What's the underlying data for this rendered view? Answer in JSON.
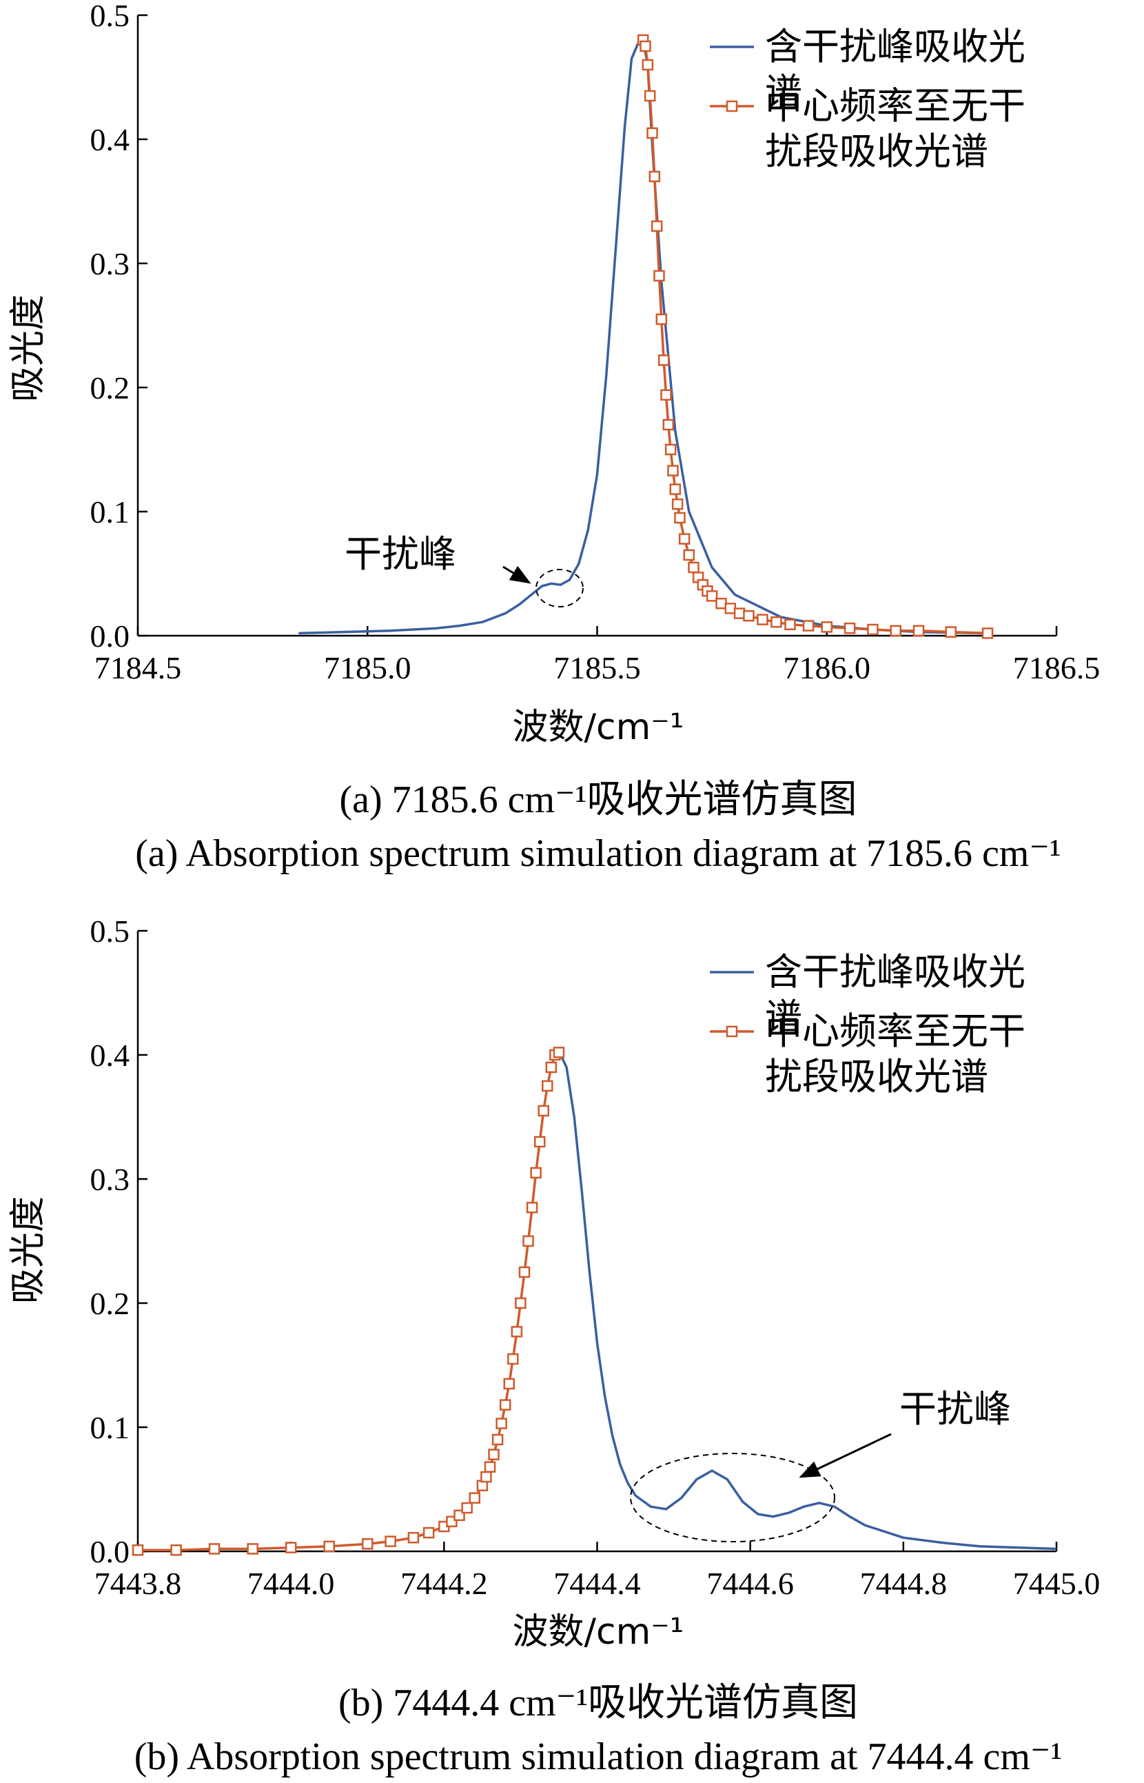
{
  "chart_data": [
    {
      "type": "line",
      "caption_cn": "(a) 7185.6 cm⁻¹吸收光谱仿真图",
      "caption_en": "(a) Absorption spectrum simulation diagram at 7185.6 cm⁻¹",
      "xlabel": "波数/cm⁻¹",
      "ylabel": "吸光度",
      "xlim": [
        7184.5,
        7186.5
      ],
      "ylim": [
        0.0,
        0.5
      ],
      "xticks": [
        "7184.5",
        "7185.0",
        "7185.5",
        "7186.0",
        "7186.5"
      ],
      "yticks": [
        "0.0",
        "0.1",
        "0.2",
        "0.3",
        "0.4",
        "0.5"
      ],
      "legend": {
        "placement": "top-right"
      },
      "annotation": {
        "text": "干扰峰",
        "x": 7185.41,
        "y": 0.042
      },
      "series": [
        {
          "name": "含干扰峰吸收光谱",
          "color": "#3a5fa0",
          "marker": "none",
          "x": [
            7184.85,
            7184.95,
            7185.05,
            7185.15,
            7185.2,
            7185.25,
            7185.3,
            7185.33,
            7185.36,
            7185.38,
            7185.4,
            7185.42,
            7185.44,
            7185.46,
            7185.48,
            7185.5,
            7185.52,
            7185.54,
            7185.56,
            7185.575,
            7185.59,
            7185.6,
            7185.61,
            7185.62,
            7185.64,
            7185.67,
            7185.7,
            7185.75,
            7185.8,
            7185.9,
            7186.0,
            7186.1,
            7186.2,
            7186.35
          ],
          "y": [
            0.002,
            0.003,
            0.004,
            0.006,
            0.008,
            0.011,
            0.018,
            0.025,
            0.034,
            0.04,
            0.042,
            0.041,
            0.045,
            0.058,
            0.085,
            0.13,
            0.21,
            0.31,
            0.41,
            0.465,
            0.478,
            0.48,
            0.46,
            0.395,
            0.285,
            0.165,
            0.1,
            0.055,
            0.033,
            0.015,
            0.008,
            0.005,
            0.003,
            0.002
          ]
        },
        {
          "name": "中心频率至无干扰段吸收光谱",
          "color": "#d05a2b",
          "marker": "square",
          "x": [
            7185.6,
            7185.605,
            7185.61,
            7185.615,
            7185.62,
            7185.625,
            7185.63,
            7185.635,
            7185.64,
            7185.645,
            7185.65,
            7185.655,
            7185.66,
            7185.665,
            7185.67,
            7185.675,
            7185.68,
            7185.69,
            7185.7,
            7185.71,
            7185.72,
            7185.73,
            7185.74,
            7185.75,
            7185.77,
            7185.79,
            7185.81,
            7185.83,
            7185.86,
            7185.89,
            7185.92,
            7185.96,
            7186.0,
            7186.05,
            7186.1,
            7186.15,
            7186.2,
            7186.27,
            7186.35
          ],
          "y": [
            0.48,
            0.475,
            0.46,
            0.435,
            0.405,
            0.37,
            0.33,
            0.29,
            0.255,
            0.222,
            0.194,
            0.17,
            0.15,
            0.133,
            0.118,
            0.106,
            0.095,
            0.078,
            0.065,
            0.055,
            0.047,
            0.041,
            0.036,
            0.032,
            0.026,
            0.022,
            0.018,
            0.016,
            0.013,
            0.011,
            0.009,
            0.008,
            0.007,
            0.006,
            0.005,
            0.004,
            0.004,
            0.003,
            0.002
          ]
        }
      ]
    },
    {
      "type": "line",
      "caption_cn": "(b) 7444.4 cm⁻¹吸收光谱仿真图",
      "caption_en": "(b) Absorption spectrum simulation diagram at 7444.4 cm⁻¹",
      "xlabel": "波数/cm⁻¹",
      "ylabel": "吸光度",
      "xlim": [
        7443.8,
        7445.0
      ],
      "ylim": [
        0.0,
        0.5
      ],
      "xticks": [
        "7443.8",
        "7444.0",
        "7444.2",
        "7444.4",
        "7444.6",
        "7444.8",
        "7445.0"
      ],
      "yticks": [
        "0.0",
        "0.1",
        "0.2",
        "0.3",
        "0.4",
        "0.5"
      ],
      "legend": {
        "placement": "top-right"
      },
      "annotation": {
        "text": "干扰峰",
        "x": 7444.6,
        "y": 0.045
      },
      "series": [
        {
          "name": "含干扰峰吸收光谱",
          "color": "#3a5fa0",
          "marker": "none",
          "x": [
            7444.34,
            7444.35,
            7444.36,
            7444.37,
            7444.38,
            7444.39,
            7444.4,
            7444.41,
            7444.42,
            7444.43,
            7444.44,
            7444.45,
            7444.47,
            7444.49,
            7444.51,
            7444.53,
            7444.55,
            7444.57,
            7444.59,
            7444.61,
            7444.63,
            7444.65,
            7444.67,
            7444.69,
            7444.71,
            7444.73,
            7444.75,
            7444.8,
            7444.85,
            7444.9,
            7445.0
          ],
          "y": [
            0.4,
            0.403,
            0.39,
            0.35,
            0.29,
            0.225,
            0.168,
            0.125,
            0.093,
            0.07,
            0.055,
            0.045,
            0.036,
            0.034,
            0.043,
            0.058,
            0.065,
            0.058,
            0.04,
            0.03,
            0.028,
            0.031,
            0.036,
            0.039,
            0.036,
            0.028,
            0.021,
            0.011,
            0.007,
            0.004,
            0.002
          ]
        },
        {
          "name": "中心频率至无干扰段吸收光谱",
          "color": "#d05a2b",
          "marker": "square",
          "x": [
            7443.8,
            7443.85,
            7443.9,
            7443.95,
            7444.0,
            7444.05,
            7444.1,
            7444.13,
            7444.16,
            7444.18,
            7444.2,
            7444.21,
            7444.22,
            7444.23,
            7444.24,
            7444.25,
            7444.255,
            7444.26,
            7444.265,
            7444.27,
            7444.275,
            7444.28,
            7444.285,
            7444.29,
            7444.295,
            7444.3,
            7444.305,
            7444.31,
            7444.315,
            7444.32,
            7444.325,
            7444.33,
            7444.335,
            7444.34,
            7444.345,
            7444.35
          ],
          "y": [
            0.001,
            0.001,
            0.002,
            0.002,
            0.003,
            0.004,
            0.006,
            0.008,
            0.011,
            0.015,
            0.02,
            0.024,
            0.029,
            0.035,
            0.043,
            0.053,
            0.06,
            0.068,
            0.078,
            0.09,
            0.103,
            0.118,
            0.135,
            0.155,
            0.177,
            0.2,
            0.225,
            0.25,
            0.277,
            0.305,
            0.33,
            0.355,
            0.375,
            0.39,
            0.4,
            0.402
          ]
        }
      ]
    }
  ]
}
